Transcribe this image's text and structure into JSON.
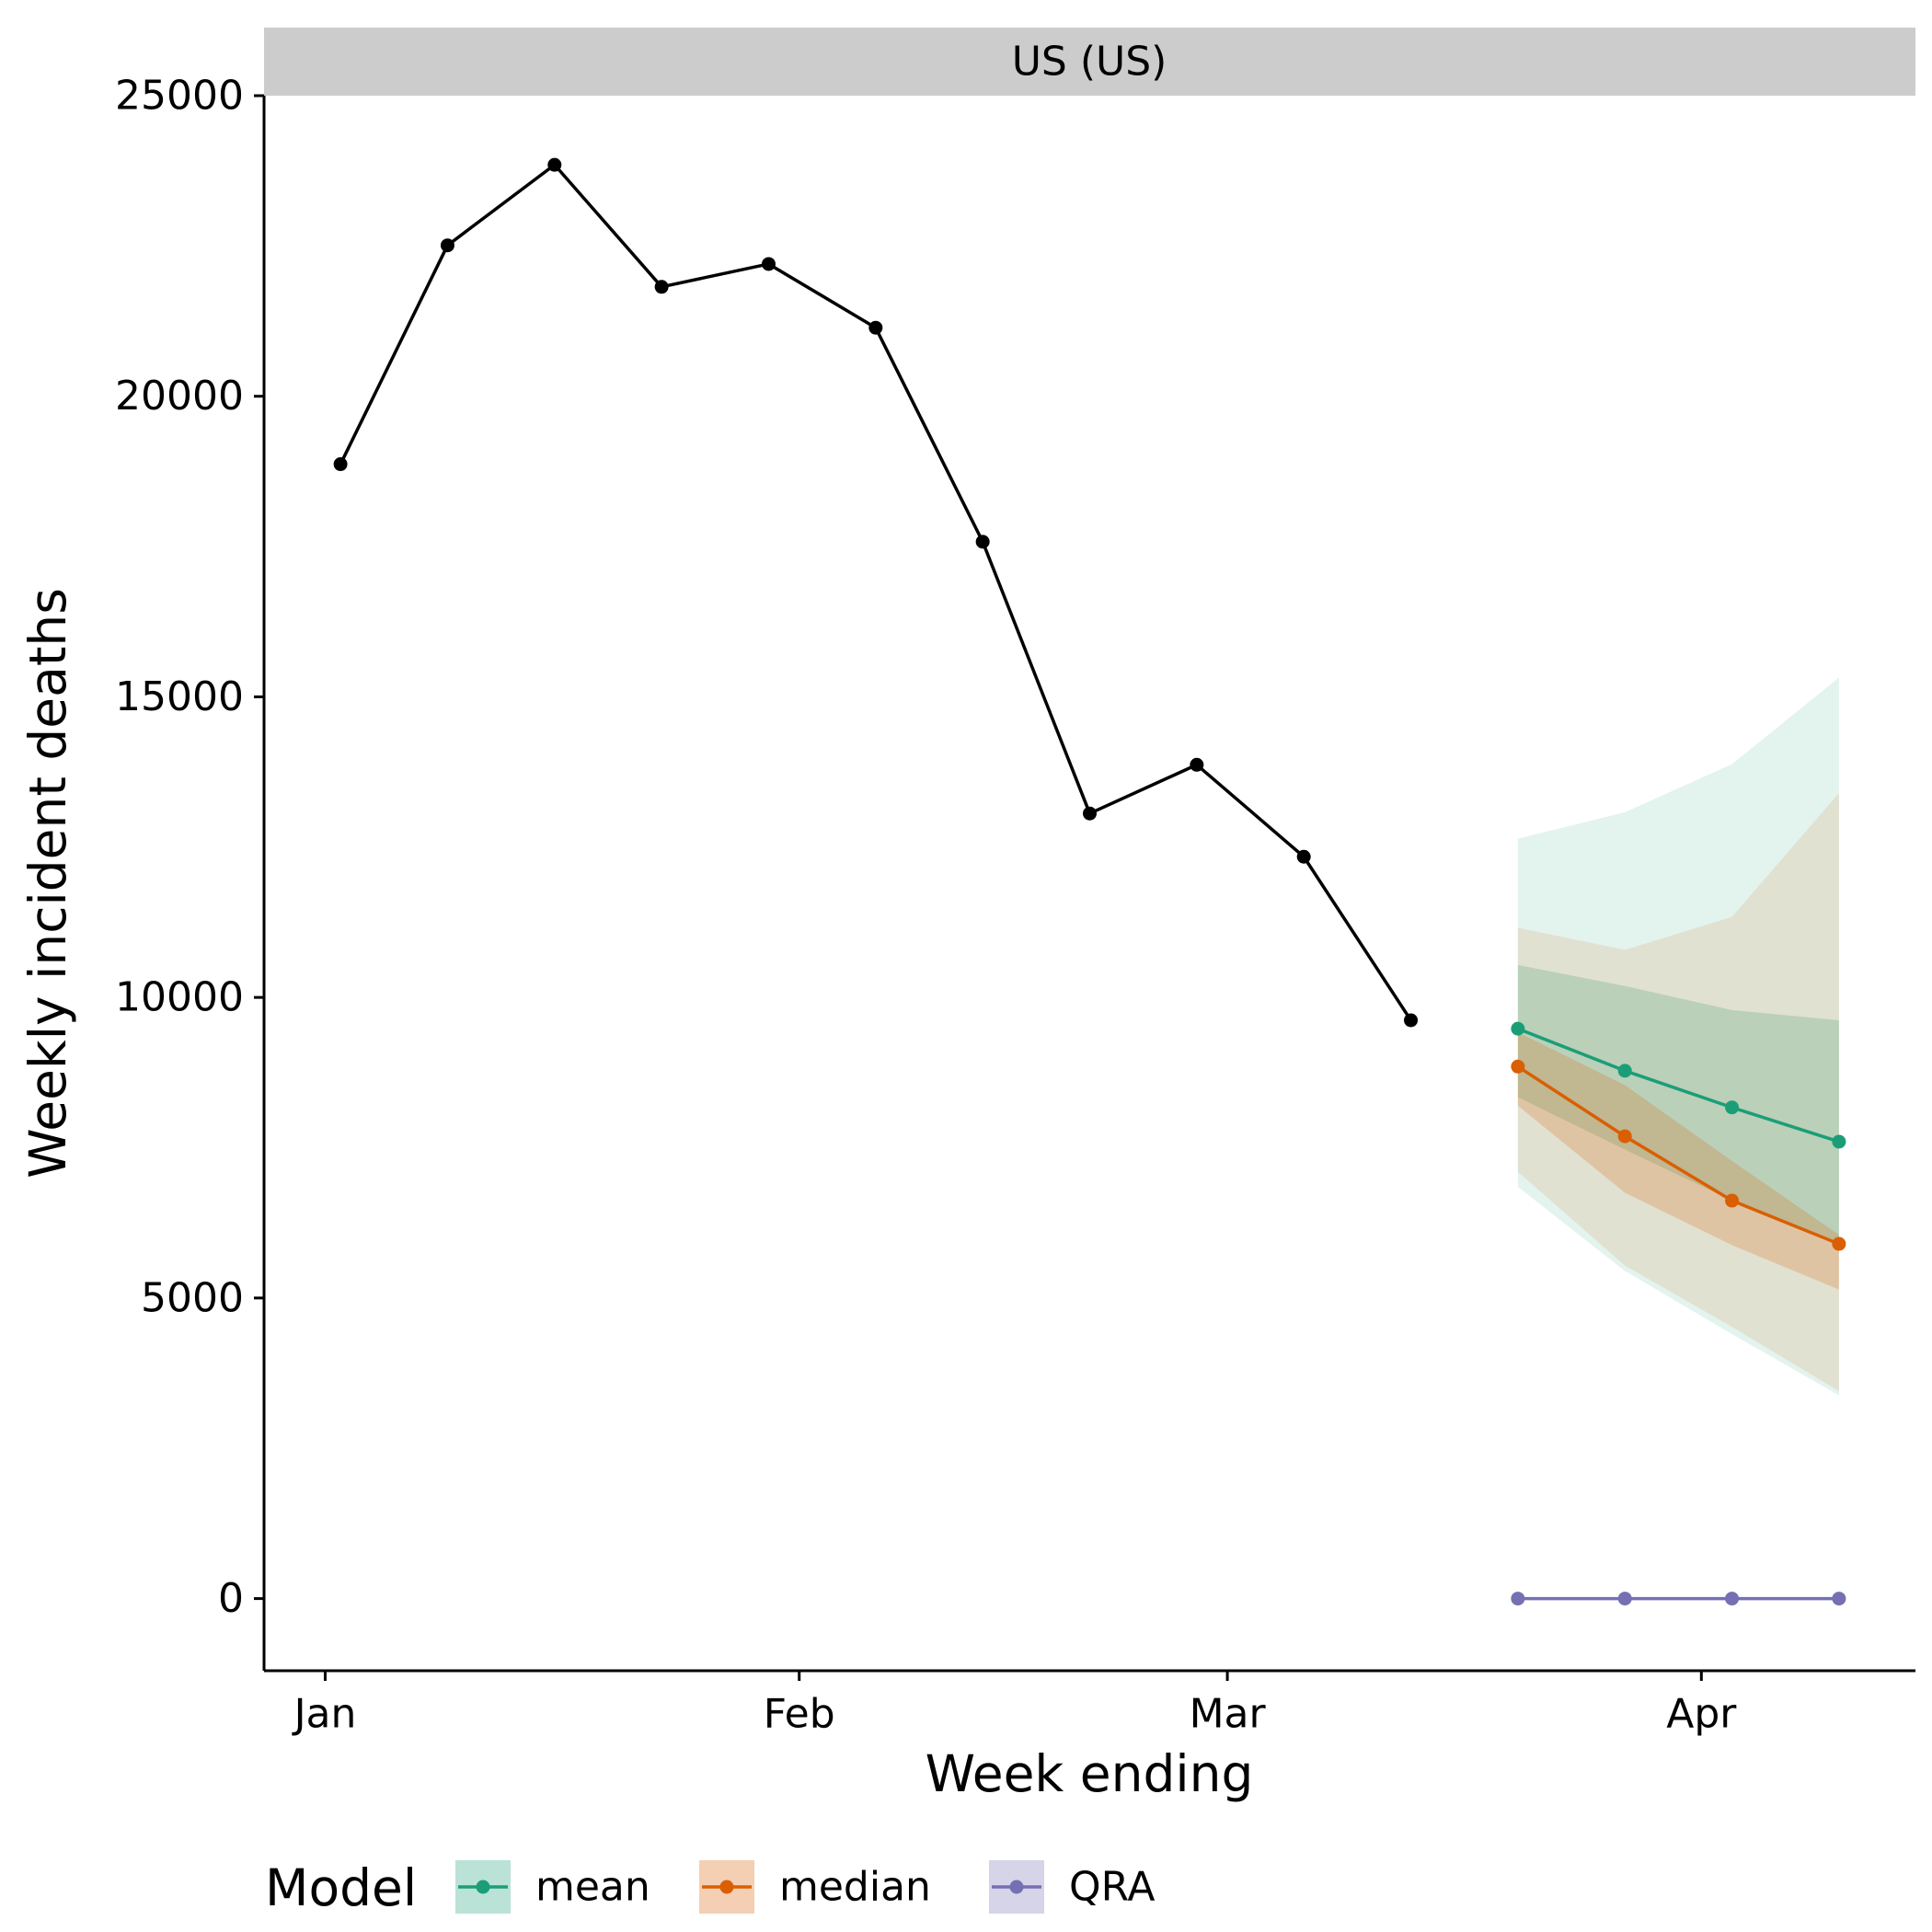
{
  "chart_data": {
    "type": "line",
    "facet": "US (US)",
    "xlabel": "Week ending",
    "ylabel": "Weekly incident deaths",
    "x_ticks": [
      {
        "label": "Jan",
        "date": "2021-01-01"
      },
      {
        "label": "Feb",
        "date": "2021-02-01"
      },
      {
        "label": "Mar",
        "date": "2021-03-01"
      },
      {
        "label": "Apr",
        "date": "2021-04-01"
      }
    ],
    "y_ticks": [
      0,
      5000,
      10000,
      15000,
      20000,
      25000
    ],
    "xlim": [
      "2020-12-28",
      "2021-04-15"
    ],
    "ylim": [
      -1200,
      25000
    ],
    "grid": false,
    "observed": {
      "color": "#000000",
      "points": [
        {
          "x": "2021-01-02",
          "y": 18870
        },
        {
          "x": "2021-01-09",
          "y": 22510
        },
        {
          "x": "2021-01-16",
          "y": 23850
        },
        {
          "x": "2021-01-23",
          "y": 21820
        },
        {
          "x": "2021-01-30",
          "y": 22200
        },
        {
          "x": "2021-02-06",
          "y": 21140
        },
        {
          "x": "2021-02-13",
          "y": 17580
        },
        {
          "x": "2021-02-20",
          "y": 13060
        },
        {
          "x": "2021-02-27",
          "y": 13870
        },
        {
          "x": "2021-03-06",
          "y": 12340
        },
        {
          "x": "2021-03-13",
          "y": 9620
        }
      ]
    },
    "series": [
      {
        "name": "mean",
        "color": "#1b9e77",
        "fill": "#1b9e77",
        "x": [
          "2021-03-20",
          "2021-03-27",
          "2021-04-03",
          "2021-04-10"
        ],
        "values": [
          9480,
          8780,
          8170,
          7600
        ],
        "outer_lower": [
          6850,
          5450,
          4400,
          3380
        ],
        "outer_upper": [
          12640,
          13080,
          13880,
          15320
        ],
        "inner_lower": [
          8340,
          7470,
          6620,
          5870
        ],
        "inner_upper": [
          10540,
          10190,
          9790,
          9620
        ]
      },
      {
        "name": "median",
        "color": "#d95f02",
        "fill": "#d95f02",
        "x": [
          "2021-03-20",
          "2021-03-27",
          "2021-04-03",
          "2021-04-10"
        ],
        "values": [
          8850,
          7690,
          6620,
          5900
        ],
        "outer_lower": [
          7100,
          5540,
          4520,
          3450
        ],
        "outer_upper": [
          11160,
          10790,
          11340,
          13400
        ],
        "inner_lower": [
          8200,
          6750,
          5880,
          5140
        ],
        "inner_upper": [
          9420,
          8540,
          7280,
          6050
        ]
      },
      {
        "name": "QRA",
        "color": "#7570b3",
        "fill": "#7570b3",
        "x": [
          "2021-03-20",
          "2021-03-27",
          "2021-04-03",
          "2021-04-10"
        ],
        "values": [
          0,
          0,
          0,
          0
        ]
      }
    ],
    "legend": {
      "title": "Model",
      "position": "bottom",
      "entries": [
        "mean",
        "median",
        "QRA"
      ]
    }
  }
}
